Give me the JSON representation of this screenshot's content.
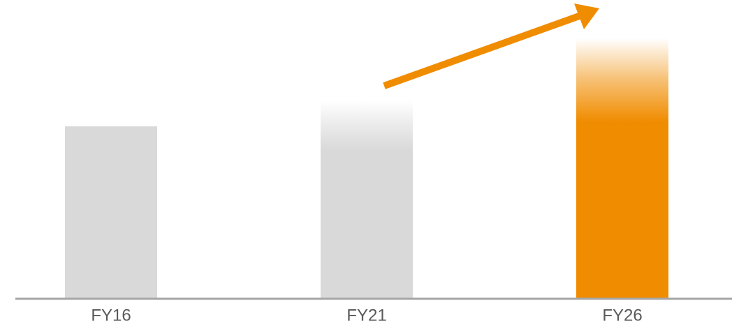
{
  "chart_data": {
    "type": "bar",
    "categories": [
      "FY16",
      "FY21",
      "FY26"
    ],
    "values": [
      247,
      283,
      373
    ],
    "colors": [
      "#d9d9d9",
      "#d9d9d9",
      "#f08c00"
    ],
    "ylim": [
      0,
      400
    ]
  }
}
